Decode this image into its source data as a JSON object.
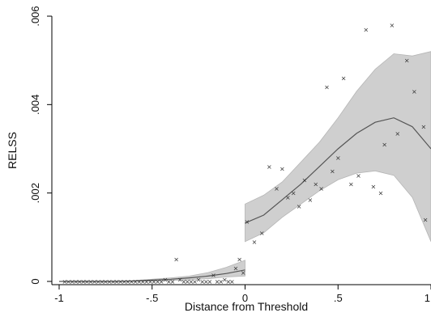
{
  "chart_data": {
    "type": "scatter",
    "xlabel": "Distance from Threshold",
    "ylabel": "RELSS",
    "xlim": [
      -1,
      1
    ],
    "ylim": [
      0,
      0.006
    ],
    "xticks": [
      {
        "value": -1,
        "label": "-1"
      },
      {
        "value": -0.5,
        "label": "-.5"
      },
      {
        "value": 0,
        "label": "0"
      },
      {
        "value": 0.5,
        "label": ".5"
      },
      {
        "value": 1,
        "label": "1"
      }
    ],
    "yticks": [
      {
        "value": 0,
        "label": "0"
      },
      {
        "value": 0.002,
        "label": ".002"
      },
      {
        "value": 0.004,
        "label": ".004"
      },
      {
        "value": 0.006,
        "label": ".006"
      }
    ],
    "grid": "none",
    "legend": "none",
    "colors": {
      "band": "#cfcfcf",
      "band_edge": "#b5b5b5",
      "fit_line": "#555555",
      "marker": "#333333"
    },
    "marker_symbol": "×",
    "points": [
      [
        -0.97,
        0
      ],
      [
        -0.95,
        0
      ],
      [
        -0.93,
        0
      ],
      [
        -0.91,
        0
      ],
      [
        -0.89,
        0
      ],
      [
        -0.87,
        0
      ],
      [
        -0.85,
        0
      ],
      [
        -0.83,
        0
      ],
      [
        -0.81,
        0
      ],
      [
        -0.79,
        0
      ],
      [
        -0.77,
        0
      ],
      [
        -0.75,
        0
      ],
      [
        -0.73,
        0
      ],
      [
        -0.71,
        0
      ],
      [
        -0.69,
        0
      ],
      [
        -0.67,
        0
      ],
      [
        -0.65,
        0
      ],
      [
        -0.63,
        0
      ],
      [
        -0.61,
        0
      ],
      [
        -0.59,
        0
      ],
      [
        -0.57,
        0
      ],
      [
        -0.55,
        0
      ],
      [
        -0.53,
        0
      ],
      [
        -0.51,
        0
      ],
      [
        -0.49,
        0
      ],
      [
        -0.47,
        0
      ],
      [
        -0.45,
        0
      ],
      [
        -0.43,
        5e-05
      ],
      [
        -0.41,
        0
      ],
      [
        -0.39,
        0
      ],
      [
        -0.37,
        0.0005
      ],
      [
        -0.35,
        5e-05
      ],
      [
        -0.33,
        0
      ],
      [
        -0.31,
        0
      ],
      [
        -0.29,
        0
      ],
      [
        -0.27,
        0
      ],
      [
        -0.25,
        5e-05
      ],
      [
        -0.23,
        0
      ],
      [
        -0.21,
        0
      ],
      [
        -0.19,
        0
      ],
      [
        -0.17,
        0.00015
      ],
      [
        -0.15,
        0
      ],
      [
        -0.13,
        0
      ],
      [
        -0.11,
        5e-05
      ],
      [
        -0.09,
        0
      ],
      [
        -0.07,
        0
      ],
      [
        -0.05,
        0.0003
      ],
      [
        -0.03,
        0.0005
      ],
      [
        -0.01,
        0.0002
      ],
      [
        0.01,
        0.00135
      ],
      [
        0.05,
        0.0009
      ],
      [
        0.09,
        0.0011
      ],
      [
        0.13,
        0.0026
      ],
      [
        0.17,
        0.0021
      ],
      [
        0.2,
        0.00255
      ],
      [
        0.23,
        0.0019
      ],
      [
        0.26,
        0.002
      ],
      [
        0.29,
        0.0017
      ],
      [
        0.32,
        0.0023
      ],
      [
        0.35,
        0.00185
      ],
      [
        0.38,
        0.0022
      ],
      [
        0.41,
        0.0021
      ],
      [
        0.44,
        0.0044
      ],
      [
        0.47,
        0.0025
      ],
      [
        0.5,
        0.0028
      ],
      [
        0.53,
        0.0046
      ],
      [
        0.57,
        0.0022
      ],
      [
        0.61,
        0.0024
      ],
      [
        0.65,
        0.0057
      ],
      [
        0.69,
        0.00215
      ],
      [
        0.73,
        0.002
      ],
      [
        0.75,
        0.0031
      ],
      [
        0.79,
        0.0058
      ],
      [
        0.82,
        0.00335
      ],
      [
        0.87,
        0.005
      ],
      [
        0.91,
        0.0043
      ],
      [
        0.96,
        0.0035
      ],
      [
        0.97,
        0.0014
      ]
    ],
    "fit": [
      {
        "segment": "left",
        "x": [
          -1,
          -0.9,
          -0.8,
          -0.7,
          -0.6,
          -0.5,
          -0.4,
          -0.3,
          -0.2,
          -0.1,
          0
        ],
        "y": [
          0,
          0,
          0,
          0,
          1e-05,
          3e-05,
          5e-05,
          8e-05,
          0.00012,
          0.00018,
          0.00026
        ],
        "lower": [
          0,
          0,
          0,
          0,
          0,
          1e-05,
          2e-05,
          4e-05,
          6e-05,
          0.0001,
          0.00012
        ],
        "upper": [
          0,
          0,
          0,
          0,
          2e-05,
          5e-05,
          8e-05,
          0.00012,
          0.0002,
          0.00032,
          0.00048
        ]
      },
      {
        "segment": "right",
        "x": [
          0,
          0.1,
          0.2,
          0.3,
          0.4,
          0.5,
          0.6,
          0.7,
          0.8,
          0.9,
          1
        ],
        "y": [
          0.00132,
          0.0015,
          0.00185,
          0.0022,
          0.0026,
          0.003,
          0.00335,
          0.0036,
          0.0037,
          0.0035,
          0.003
        ],
        "lower": [
          0.0009,
          0.0011,
          0.00145,
          0.00175,
          0.00205,
          0.0023,
          0.00245,
          0.0025,
          0.0024,
          0.0019,
          0.0009
        ],
        "upper": [
          0.00175,
          0.00195,
          0.00225,
          0.0027,
          0.00315,
          0.0037,
          0.0043,
          0.0048,
          0.00515,
          0.0051,
          0.0052
        ]
      }
    ]
  }
}
